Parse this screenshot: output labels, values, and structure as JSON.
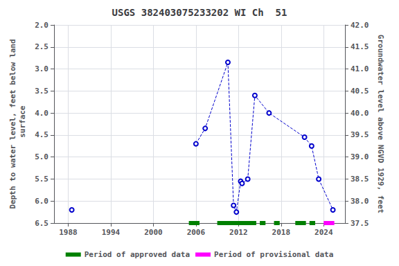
{
  "chart_data": {
    "type": "line",
    "title": "USGS 382403075233202 WI Ch  51",
    "ylabel": "Depth to water level, feet below land\n surface",
    "y2label": "Groundwater level above NGVD 1929, feet",
    "xlim": [
      1986,
      2027
    ],
    "xticks": [
      1988,
      1994,
      2000,
      2006,
      2012,
      2018,
      2024
    ],
    "ylim": [
      6.5,
      2.0
    ],
    "yticks": [
      {
        "value": 2.0,
        "label": "2.0"
      },
      2.5,
      {
        "value": 3.0,
        "label": "3.0"
      },
      3.5,
      {
        "value": 4.0,
        "label": "4.0"
      },
      4.5,
      {
        "value": 5.0,
        "label": "5.0"
      },
      5.5,
      {
        "value": 6.0,
        "label": "6.0"
      },
      6.5
    ],
    "y2lim": [
      37.5,
      42.0
    ],
    "y2ticks": [
      37.5,
      {
        "value": 38.0,
        "label": "38.0"
      },
      38.5,
      {
        "value": 39.0,
        "label": "39.0"
      },
      39.5,
      {
        "value": 40.0,
        "label": "40.0"
      },
      40.5,
      {
        "value": 41.0,
        "label": "41.0"
      },
      41.5,
      {
        "value": 42.0,
        "label": "42.0"
      }
    ],
    "grid": true,
    "legend": "bottom",
    "series": [
      {
        "color": "#0000cc",
        "line_style": "dashed",
        "marker": "circle",
        "x": [
          1988.5
        ],
        "values": [
          6.2
        ]
      },
      {
        "color": "#0000cc",
        "line_style": "dashed",
        "marker": "circle",
        "x": [
          2006.0,
          2007.3,
          2010.5,
          2011.3,
          2011.7,
          2012.3,
          2012.5,
          2013.3,
          2014.3,
          2016.3,
          2021.3,
          2022.3,
          2023.3,
          2025.3
        ],
        "values": [
          4.7,
          4.35,
          2.85,
          6.1,
          6.25,
          5.55,
          5.6,
          5.5,
          3.6,
          4.0,
          4.55,
          4.75,
          5.5,
          6.2
        ]
      }
    ],
    "periods": [
      {
        "name": "Period of approved data",
        "color": "#008000",
        "ranges": [
          [
            2005.0,
            2006.5
          ],
          [
            2009.0,
            2014.5
          ],
          [
            2015.0,
            2015.8
          ],
          [
            2017.0,
            2017.8
          ],
          [
            2020.0,
            2021.5
          ],
          [
            2022.0,
            2022.8
          ]
        ]
      },
      {
        "name": "Period of provisional data",
        "color": "#ff00ff",
        "ranges": [
          [
            2024.0,
            2025.5
          ]
        ]
      }
    ]
  }
}
